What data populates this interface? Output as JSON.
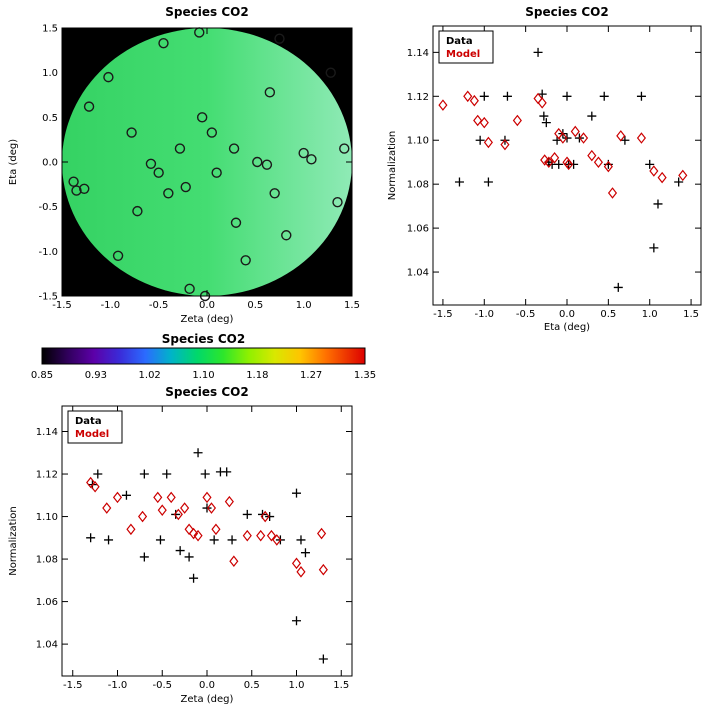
{
  "figure": {
    "background": "#ffffff"
  },
  "colors": {
    "data": "#000000",
    "model": "#cc0000",
    "axis": "#000000",
    "map_background": "#000000"
  },
  "chart_data": [
    {
      "id": "sky-map",
      "type": "scatter",
      "title": "Species CO2",
      "xlabel": "Zeta (deg)",
      "ylabel": "Eta (deg)",
      "xlim": [
        -1.5,
        1.5
      ],
      "ylim": [
        -1.5,
        1.5
      ],
      "xticks": [
        -1.5,
        -1.0,
        -0.5,
        0.0,
        0.5,
        1.0,
        1.5
      ],
      "yticks": [
        -1.5,
        -1.0,
        -0.5,
        0.0,
        0.5,
        1.0,
        1.5
      ],
      "grid": false,
      "background": "#000000",
      "field": {
        "shape": "ellipse",
        "center": [
          0,
          0
        ],
        "radius": 1.5,
        "gradient": [
          "#35d263",
          "#44dd72",
          "#8feab6"
        ]
      },
      "marker": {
        "shape": "open-circle",
        "color": "#1a1a1a"
      },
      "points": [
        [
          -1.38,
          -0.22
        ],
        [
          -1.35,
          -0.32
        ],
        [
          -1.27,
          -0.3
        ],
        [
          -1.22,
          0.62
        ],
        [
          -1.02,
          0.95
        ],
        [
          -0.92,
          -1.05
        ],
        [
          -0.78,
          0.33
        ],
        [
          -0.72,
          -0.55
        ],
        [
          -0.58,
          -0.02
        ],
        [
          -0.5,
          -0.12
        ],
        [
          -0.45,
          1.33
        ],
        [
          -0.4,
          -0.35
        ],
        [
          -0.28,
          0.15
        ],
        [
          -0.22,
          -0.28
        ],
        [
          -0.18,
          -1.42
        ],
        [
          -0.08,
          1.45
        ],
        [
          -0.05,
          0.5
        ],
        [
          -0.02,
          -1.5
        ],
        [
          0.05,
          0.33
        ],
        [
          0.1,
          -0.12
        ],
        [
          0.28,
          0.15
        ],
        [
          0.3,
          -0.68
        ],
        [
          0.4,
          -1.1
        ],
        [
          0.52,
          0.0
        ],
        [
          0.62,
          -0.03
        ],
        [
          0.65,
          0.78
        ],
        [
          0.7,
          -0.35
        ],
        [
          0.75,
          1.38
        ],
        [
          0.82,
          -0.82
        ],
        [
          1.0,
          0.1
        ],
        [
          1.08,
          0.03
        ],
        [
          1.28,
          1.0
        ],
        [
          1.35,
          -0.45
        ],
        [
          1.42,
          0.15
        ]
      ]
    },
    {
      "id": "norm-vs-eta",
      "type": "scatter",
      "title": "Species CO2",
      "xlabel": "Eta (deg)",
      "ylabel": "Normalization",
      "xlim": [
        -1.62,
        1.62
      ],
      "ylim": [
        1.025,
        1.152
      ],
      "xticks": [
        -1.5,
        -1.0,
        -0.5,
        0.0,
        0.5,
        1.0,
        1.5
      ],
      "yticks": [
        1.04,
        1.06,
        1.08,
        1.1,
        1.12,
        1.14
      ],
      "grid": false,
      "legend": {
        "position": "top-left",
        "entries": [
          {
            "label": "Data",
            "color": "#000000"
          },
          {
            "label": "Model",
            "color": "#cc0000"
          }
        ]
      },
      "series": [
        {
          "name": "Data",
          "marker": "plus",
          "color": "#000000",
          "points": [
            [
              -1.3,
              1.081
            ],
            [
              -1.05,
              1.1
            ],
            [
              -1.0,
              1.12
            ],
            [
              -0.95,
              1.081
            ],
            [
              -0.75,
              1.1
            ],
            [
              -0.72,
              1.12
            ],
            [
              -0.35,
              1.14
            ],
            [
              -0.3,
              1.121
            ],
            [
              -0.28,
              1.111
            ],
            [
              -0.25,
              1.108
            ],
            [
              -0.22,
              1.09
            ],
            [
              -0.18,
              1.089
            ],
            [
              -0.12,
              1.1
            ],
            [
              -0.1,
              1.089
            ],
            [
              -0.05,
              1.103
            ],
            [
              0.0,
              1.12
            ],
            [
              0.0,
              1.101
            ],
            [
              0.02,
              1.089
            ],
            [
              0.08,
              1.089
            ],
            [
              0.15,
              1.101
            ],
            [
              0.3,
              1.111
            ],
            [
              0.45,
              1.12
            ],
            [
              0.5,
              1.089
            ],
            [
              0.62,
              1.033
            ],
            [
              0.7,
              1.1
            ],
            [
              0.9,
              1.12
            ],
            [
              1.0,
              1.089
            ],
            [
              1.05,
              1.051
            ],
            [
              1.1,
              1.071
            ],
            [
              1.35,
              1.081
            ]
          ]
        },
        {
          "name": "Model",
          "marker": "diamond",
          "color": "#cc0000",
          "points": [
            [
              -1.5,
              1.116
            ],
            [
              -1.2,
              1.12
            ],
            [
              -1.12,
              1.118
            ],
            [
              -1.08,
              1.109
            ],
            [
              -1.0,
              1.108
            ],
            [
              -0.95,
              1.099
            ],
            [
              -0.75,
              1.098
            ],
            [
              -0.6,
              1.109
            ],
            [
              -0.35,
              1.119
            ],
            [
              -0.3,
              1.117
            ],
            [
              -0.27,
              1.091
            ],
            [
              -0.22,
              1.09
            ],
            [
              -0.15,
              1.092
            ],
            [
              -0.1,
              1.103
            ],
            [
              -0.05,
              1.101
            ],
            [
              0.0,
              1.09
            ],
            [
              0.02,
              1.089
            ],
            [
              0.1,
              1.104
            ],
            [
              0.2,
              1.101
            ],
            [
              0.3,
              1.093
            ],
            [
              0.38,
              1.09
            ],
            [
              0.5,
              1.088
            ],
            [
              0.55,
              1.076
            ],
            [
              0.65,
              1.102
            ],
            [
              0.9,
              1.101
            ],
            [
              1.05,
              1.086
            ],
            [
              1.15,
              1.083
            ],
            [
              1.4,
              1.084
            ]
          ]
        }
      ]
    },
    {
      "id": "colorbar",
      "type": "colorbar",
      "title": "Species CO2",
      "tick_labels": [
        "0.85",
        "0.93",
        "1.02",
        "1.10",
        "1.18",
        "1.27",
        "1.35"
      ],
      "gradient": [
        [
          0.0,
          "#000000"
        ],
        [
          0.08,
          "#30005c"
        ],
        [
          0.16,
          "#5c00a8"
        ],
        [
          0.24,
          "#3a2bd8"
        ],
        [
          0.32,
          "#2b6bff"
        ],
        [
          0.4,
          "#00b4c8"
        ],
        [
          0.48,
          "#00d86b"
        ],
        [
          0.56,
          "#2ce62c"
        ],
        [
          0.64,
          "#8ff000"
        ],
        [
          0.72,
          "#d8e800"
        ],
        [
          0.8,
          "#ffc400"
        ],
        [
          0.88,
          "#ff7000"
        ],
        [
          1.0,
          "#dd0000"
        ]
      ]
    },
    {
      "id": "norm-vs-zeta",
      "type": "scatter",
      "title": "Species CO2",
      "xlabel": "Zeta (deg)",
      "ylabel": "Normalization",
      "xlim": [
        -1.62,
        1.62
      ],
      "ylim": [
        1.025,
        1.152
      ],
      "xticks": [
        -1.5,
        -1.0,
        -0.5,
        0.0,
        0.5,
        1.0,
        1.5
      ],
      "yticks": [
        1.04,
        1.06,
        1.08,
        1.1,
        1.12,
        1.14
      ],
      "grid": false,
      "legend": {
        "position": "top-left",
        "entries": [
          {
            "label": "Data",
            "color": "#000000"
          },
          {
            "label": "Model",
            "color": "#cc0000"
          }
        ]
      },
      "series": [
        {
          "name": "Data",
          "marker": "plus",
          "color": "#000000",
          "points": [
            [
              -1.28,
              1.115
            ],
            [
              -1.3,
              1.09
            ],
            [
              -1.22,
              1.12
            ],
            [
              -1.1,
              1.089
            ],
            [
              -0.9,
              1.11
            ],
            [
              -0.7,
              1.12
            ],
            [
              -0.7,
              1.081
            ],
            [
              -0.52,
              1.089
            ],
            [
              -0.45,
              1.12
            ],
            [
              -0.35,
              1.101
            ],
            [
              -0.3,
              1.084
            ],
            [
              -0.2,
              1.081
            ],
            [
              -0.15,
              1.071
            ],
            [
              -0.1,
              1.13
            ],
            [
              -0.02,
              1.12
            ],
            [
              0.0,
              1.104
            ],
            [
              0.08,
              1.089
            ],
            [
              0.15,
              1.121
            ],
            [
              0.22,
              1.121
            ],
            [
              0.28,
              1.089
            ],
            [
              0.45,
              1.101
            ],
            [
              0.62,
              1.101
            ],
            [
              0.7,
              1.1
            ],
            [
              0.82,
              1.089
            ],
            [
              1.0,
              1.111
            ],
            [
              1.0,
              1.051
            ],
            [
              1.05,
              1.089
            ],
            [
              1.1,
              1.083
            ],
            [
              1.3,
              1.033
            ]
          ]
        },
        {
          "name": "Model",
          "marker": "diamond",
          "color": "#cc0000",
          "points": [
            [
              -1.3,
              1.116
            ],
            [
              -1.25,
              1.114
            ],
            [
              -1.12,
              1.104
            ],
            [
              -1.0,
              1.109
            ],
            [
              -0.85,
              1.094
            ],
            [
              -0.72,
              1.1
            ],
            [
              -0.55,
              1.109
            ],
            [
              -0.5,
              1.103
            ],
            [
              -0.4,
              1.109
            ],
            [
              -0.32,
              1.101
            ],
            [
              -0.25,
              1.104
            ],
            [
              -0.2,
              1.094
            ],
            [
              -0.15,
              1.092
            ],
            [
              -0.1,
              1.091
            ],
            [
              0.0,
              1.109
            ],
            [
              0.05,
              1.104
            ],
            [
              0.1,
              1.094
            ],
            [
              0.25,
              1.107
            ],
            [
              0.3,
              1.079
            ],
            [
              0.45,
              1.091
            ],
            [
              0.6,
              1.091
            ],
            [
              0.65,
              1.1
            ],
            [
              0.72,
              1.091
            ],
            [
              0.78,
              1.089
            ],
            [
              1.0,
              1.078
            ],
            [
              1.05,
              1.074
            ],
            [
              1.28,
              1.092
            ],
            [
              1.3,
              1.075
            ]
          ]
        }
      ]
    }
  ]
}
